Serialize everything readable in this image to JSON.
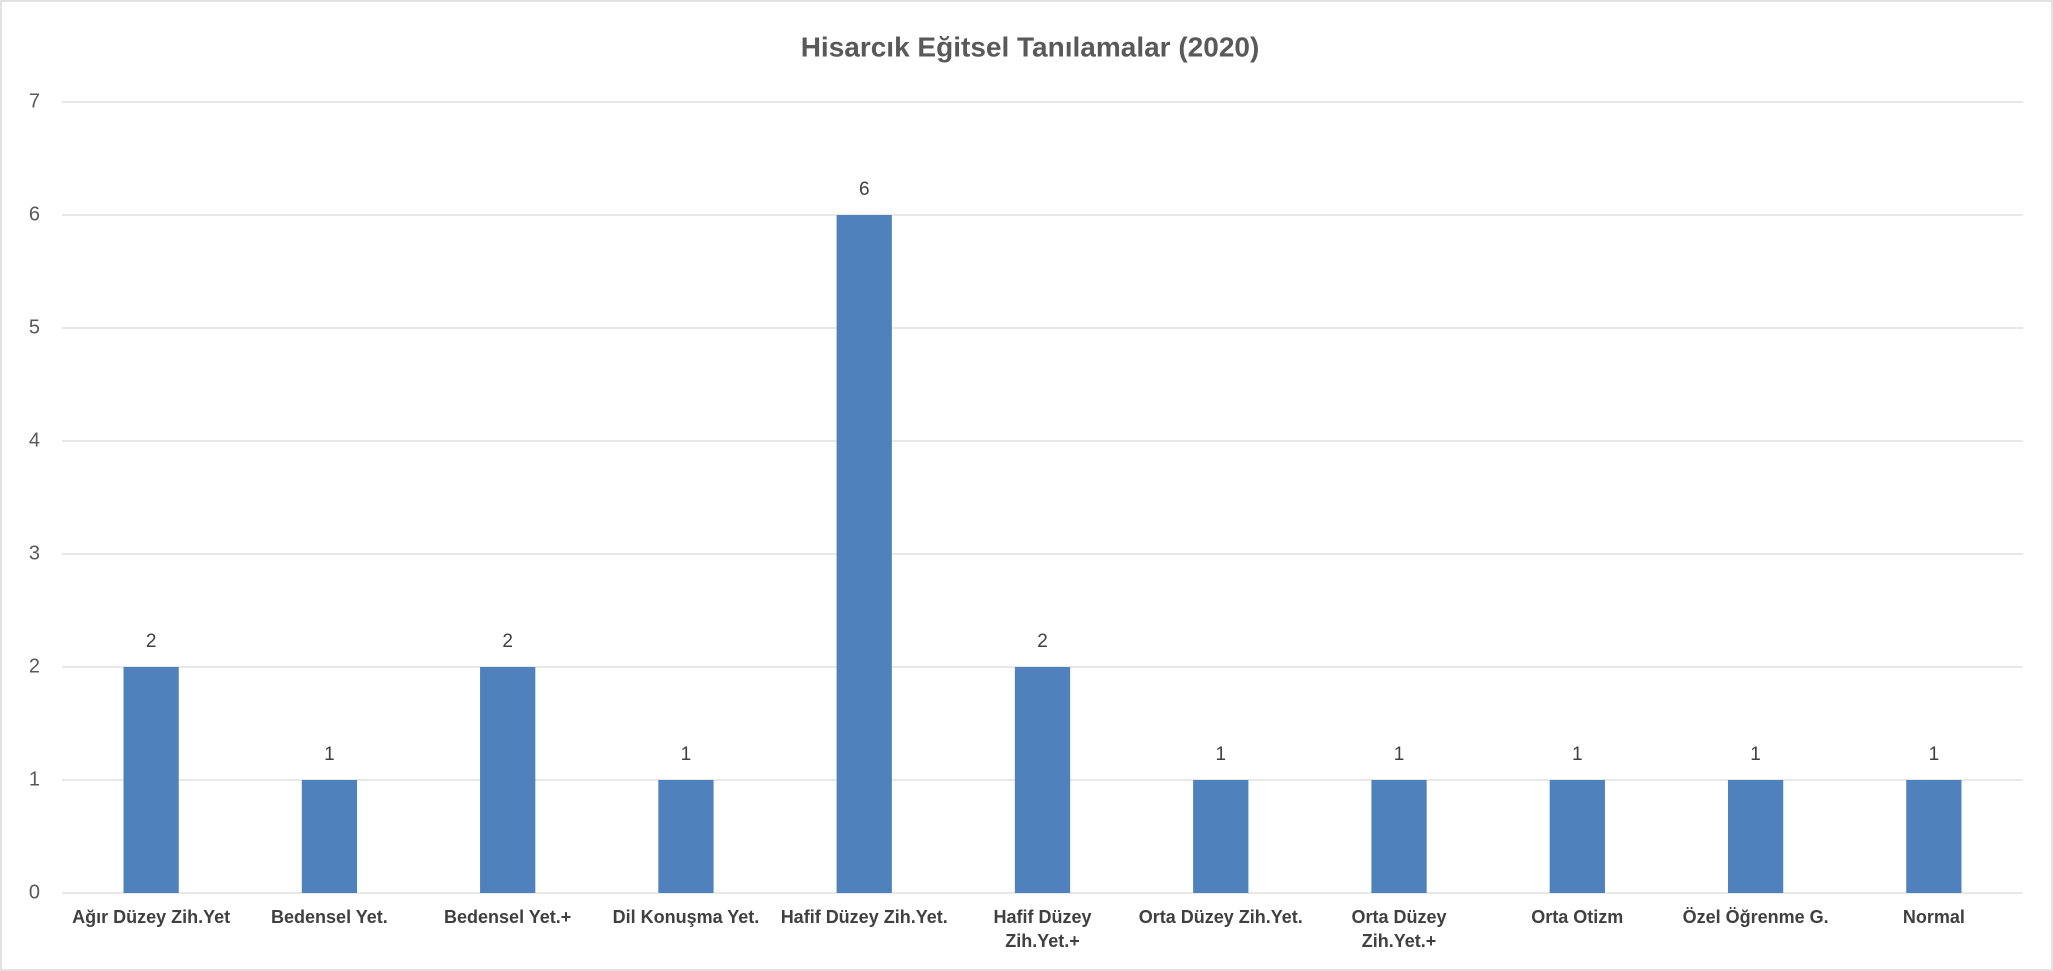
{
  "chart_data": {
    "type": "bar",
    "title": "Hisarcık Eğitsel Tanılamalar (2020)",
    "categories": [
      "Ağır Düzey Zih.Yet",
      "Bedensel Yet.",
      "Bedensel Yet.+",
      "Dil Konuşma Yet.",
      "Hafif Düzey Zih.Yet.",
      "Hafif Düzey Zih.Yet.+",
      "Orta Düzey Zih.Yet.",
      "Orta Düzey Zih.Yet.+",
      "Orta Otizm",
      "Özel Öğrenme G.",
      "Normal"
    ],
    "values": [
      2,
      1,
      2,
      1,
      6,
      2,
      1,
      1,
      1,
      1,
      1
    ],
    "color": "#4f81bd",
    "ylim": [
      0,
      7
    ],
    "yticks": [
      0,
      1,
      2,
      3,
      4,
      5,
      6,
      7
    ],
    "grid": true
  }
}
